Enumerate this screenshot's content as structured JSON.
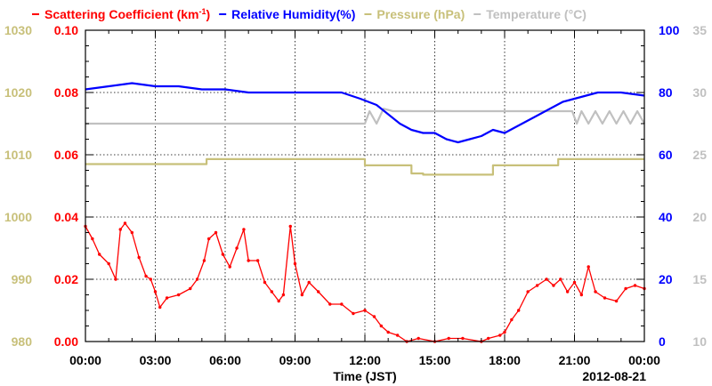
{
  "chart_data": {
    "type": "line",
    "legend": [
      {
        "label": "Scattering Coefficient (km",
        "sup": "-1",
        "tail": ")",
        "color": "#ff0000"
      },
      {
        "label": "Relative Humidity(%)",
        "color": "#0000ff"
      },
      {
        "label": "Pressure (hPa)",
        "color": "#c8c07a"
      },
      {
        "label": "Temperature (°C)",
        "color": "#c0c0c0"
      }
    ],
    "xlabel": "Time (JST)",
    "date_label": "2012-08-21",
    "x_ticks": [
      "00:00",
      "03:00",
      "06:00",
      "09:00",
      "12:00",
      "15:00",
      "18:00",
      "21:00",
      "00:00"
    ],
    "x_range_hours": [
      0,
      24
    ],
    "grid": true,
    "axes": {
      "left_inner": {
        "color": "#ff0000",
        "range": [
          0,
          0.1
        ],
        "ticks": [
          "0.00",
          "0.02",
          "0.04",
          "0.06",
          "0.08",
          "0.10"
        ]
      },
      "left_outer": {
        "color": "#c8c07a",
        "range": [
          980,
          1030
        ],
        "ticks": [
          "980",
          "990",
          "1000",
          "1010",
          "1020",
          "1030"
        ]
      },
      "right_inner": {
        "color": "#0000ff",
        "range": [
          0,
          100
        ],
        "ticks": [
          "0",
          "20",
          "40",
          "60",
          "80",
          "100"
        ]
      },
      "right_outer": {
        "color": "#c0c0c0",
        "range": [
          10,
          35
        ],
        "ticks": [
          "10",
          "15",
          "20",
          "25",
          "30",
          "35"
        ]
      }
    },
    "series": [
      {
        "key": "scattering",
        "axis": "left_inner",
        "color": "#ff0000",
        "markers": true,
        "points": [
          [
            0,
            0.037
          ],
          [
            0.3,
            0.033
          ],
          [
            0.6,
            0.028
          ],
          [
            1.0,
            0.025
          ],
          [
            1.3,
            0.02
          ],
          [
            1.5,
            0.036
          ],
          [
            1.7,
            0.038
          ],
          [
            2.0,
            0.035
          ],
          [
            2.3,
            0.027
          ],
          [
            2.6,
            0.021
          ],
          [
            2.8,
            0.02
          ],
          [
            3.0,
            0.016
          ],
          [
            3.2,
            0.011
          ],
          [
            3.5,
            0.014
          ],
          [
            4.0,
            0.015
          ],
          [
            4.5,
            0.017
          ],
          [
            4.8,
            0.02
          ],
          [
            5.1,
            0.026
          ],
          [
            5.3,
            0.033
          ],
          [
            5.6,
            0.035
          ],
          [
            5.9,
            0.028
          ],
          [
            6.2,
            0.024
          ],
          [
            6.5,
            0.03
          ],
          [
            6.8,
            0.036
          ],
          [
            7.0,
            0.026
          ],
          [
            7.4,
            0.026
          ],
          [
            7.7,
            0.019
          ],
          [
            8.0,
            0.016
          ],
          [
            8.3,
            0.013
          ],
          [
            8.5,
            0.015
          ],
          [
            8.8,
            0.037
          ],
          [
            9.0,
            0.025
          ],
          [
            9.3,
            0.015
          ],
          [
            9.6,
            0.019
          ],
          [
            10.0,
            0.016
          ],
          [
            10.5,
            0.012
          ],
          [
            11.0,
            0.012
          ],
          [
            11.5,
            0.009
          ],
          [
            12.0,
            0.01
          ],
          [
            12.4,
            0.008
          ],
          [
            12.7,
            0.005
          ],
          [
            13.0,
            0.003
          ],
          [
            13.4,
            0.002
          ],
          [
            13.8,
            0.0
          ],
          [
            14.3,
            0.001
          ],
          [
            15.0,
            0.0
          ],
          [
            15.6,
            0.001
          ],
          [
            16.2,
            0.001
          ],
          [
            17.0,
            0.0
          ],
          [
            17.3,
            0.001
          ],
          [
            17.8,
            0.002
          ],
          [
            18.0,
            0.003
          ],
          [
            18.3,
            0.007
          ],
          [
            18.6,
            0.01
          ],
          [
            19.0,
            0.016
          ],
          [
            19.4,
            0.018
          ],
          [
            19.8,
            0.02
          ],
          [
            20.1,
            0.018
          ],
          [
            20.4,
            0.02
          ],
          [
            20.7,
            0.016
          ],
          [
            21.0,
            0.019
          ],
          [
            21.3,
            0.015
          ],
          [
            21.6,
            0.024
          ],
          [
            21.9,
            0.016
          ],
          [
            22.3,
            0.014
          ],
          [
            22.8,
            0.013
          ],
          [
            23.2,
            0.017
          ],
          [
            23.6,
            0.018
          ],
          [
            24.0,
            0.017
          ]
        ]
      },
      {
        "key": "humidity",
        "axis": "right_inner",
        "color": "#0000ff",
        "markers": false,
        "points": [
          [
            0,
            81
          ],
          [
            1,
            82
          ],
          [
            2,
            83
          ],
          [
            3,
            82
          ],
          [
            4,
            82
          ],
          [
            5,
            81
          ],
          [
            6,
            81
          ],
          [
            7,
            80
          ],
          [
            8,
            80
          ],
          [
            9,
            80
          ],
          [
            10,
            80
          ],
          [
            11,
            80
          ],
          [
            11.8,
            78
          ],
          [
            12.5,
            76
          ],
          [
            13,
            73
          ],
          [
            13.5,
            70
          ],
          [
            14,
            68
          ],
          [
            14.5,
            67
          ],
          [
            15,
            67
          ],
          [
            15.5,
            65
          ],
          [
            16,
            64
          ],
          [
            16.5,
            65
          ],
          [
            17,
            66
          ],
          [
            17.5,
            68
          ],
          [
            18,
            67
          ],
          [
            18.5,
            69
          ],
          [
            19,
            71
          ],
          [
            19.5,
            73
          ],
          [
            20,
            75
          ],
          [
            20.5,
            77
          ],
          [
            21,
            78
          ],
          [
            22,
            80
          ],
          [
            23,
            80
          ],
          [
            24,
            79
          ]
        ]
      },
      {
        "key": "pressure",
        "axis": "left_outer",
        "color": "#c8c07a",
        "markers": false,
        "points": [
          [
            0,
            1008.5
          ],
          [
            5.2,
            1008.5
          ],
          [
            5.2,
            1009.3
          ],
          [
            12.0,
            1009.3
          ],
          [
            12.0,
            1008.3
          ],
          [
            14.0,
            1008.3
          ],
          [
            14.0,
            1007.0
          ],
          [
            14.5,
            1007.0
          ],
          [
            14.5,
            1006.8
          ],
          [
            17.5,
            1006.8
          ],
          [
            17.5,
            1008.3
          ],
          [
            20.3,
            1008.3
          ],
          [
            20.3,
            1009.3
          ],
          [
            24.0,
            1009.3
          ]
        ]
      },
      {
        "key": "temperature",
        "axis": "right_outer",
        "color": "#c0c0c0",
        "markers": false,
        "points": [
          [
            0,
            27.5
          ],
          [
            12.0,
            27.5
          ],
          [
            12.2,
            28.5
          ],
          [
            12.5,
            27.5
          ],
          [
            12.8,
            28.7
          ],
          [
            13.2,
            28.5
          ],
          [
            20.9,
            28.5
          ],
          [
            21.1,
            27.5
          ],
          [
            21.3,
            28.5
          ],
          [
            21.6,
            27.5
          ],
          [
            21.9,
            28.5
          ],
          [
            22.2,
            27.5
          ],
          [
            22.5,
            28.5
          ],
          [
            22.8,
            27.5
          ],
          [
            23.1,
            28.5
          ],
          [
            23.4,
            27.5
          ],
          [
            23.7,
            28.5
          ],
          [
            24.0,
            27.5
          ]
        ]
      }
    ]
  }
}
